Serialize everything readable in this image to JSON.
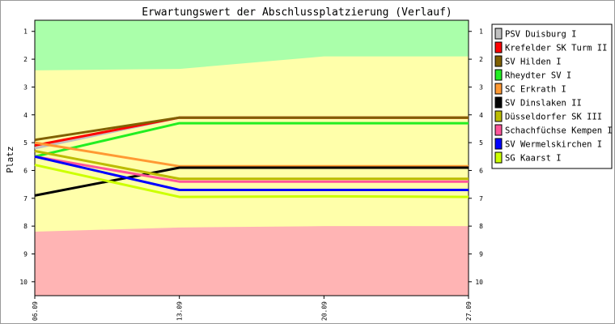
{
  "chart_data": {
    "type": "line",
    "title": "Erwartungswert der Abschlussplatzierung (Verlauf)",
    "ylabel": "Platz",
    "xlabel": "",
    "x": [
      "06.09",
      "13.09",
      "20.09",
      "27.09"
    ],
    "ylim": [
      1,
      10
    ],
    "y_inverted": true,
    "y_ticks": [
      1,
      2,
      3,
      4,
      5,
      6,
      7,
      8,
      9,
      10
    ],
    "y_ticks_right": true,
    "grid": false,
    "legend_position": "right",
    "background_bands": [
      {
        "from_x": [
          "06.09",
          "13.09",
          "20.09",
          "27.09"
        ],
        "lower_bound": [
          2.4,
          2.35,
          1.9,
          1.9
        ],
        "color": "#aaffaa",
        "meaning": "top"
      },
      {
        "color": "#ffffaa",
        "meaning": "middle"
      },
      {
        "upper_bound": [
          8.2,
          8.05,
          8.0,
          8.0
        ],
        "color": "#ffb4b4",
        "meaning": "bottom"
      }
    ],
    "series": [
      {
        "name": "PSV Duisburg I",
        "color": "#c0c0c0",
        "values": [
          5.2,
          4.1,
          4.1,
          4.1
        ]
      },
      {
        "name": "Krefelder SK Turm II",
        "color": "#ff0000",
        "values": [
          5.1,
          4.1,
          4.1,
          4.1
        ]
      },
      {
        "name": "SV Hilden I",
        "color": "#806000",
        "values": [
          4.9,
          4.1,
          4.1,
          4.1
        ]
      },
      {
        "name": "Rheydter SV I",
        "color": "#22ee22",
        "values": [
          5.5,
          4.3,
          4.3,
          4.3
        ]
      },
      {
        "name": "SC Erkrath I",
        "color": "#ff9933",
        "values": [
          5.0,
          5.85,
          5.85,
          5.85
        ]
      },
      {
        "name": "SV Dinslaken II",
        "color": "#000000",
        "values": [
          6.9,
          5.9,
          5.9,
          5.9
        ]
      },
      {
        "name": "Düsseldorfer SK III",
        "color": "#bbbb00",
        "values": [
          5.3,
          6.3,
          6.3,
          6.3
        ]
      },
      {
        "name": "Schachfüchse Kempen I",
        "color": "#ff5599",
        "values": [
          5.5,
          6.4,
          6.4,
          6.4
        ]
      },
      {
        "name": "SV Wermelskirchen I",
        "color": "#0000ff",
        "values": [
          5.5,
          6.7,
          6.7,
          6.7
        ]
      },
      {
        "name": "SG Kaarst I",
        "color": "#ccff00",
        "values": [
          5.8,
          6.95,
          6.93,
          6.95
        ]
      }
    ]
  }
}
